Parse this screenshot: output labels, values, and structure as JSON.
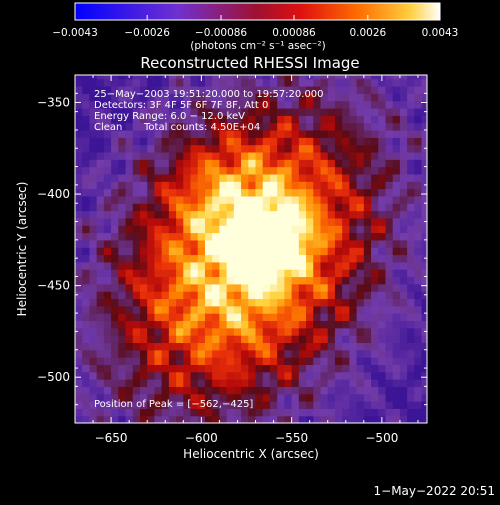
{
  "chart_data": {
    "type": "heatmap",
    "title": "Reconstructed RHESSI Image",
    "xlabel": "Heliocentric X (arcsec)",
    "ylabel": "Heliocentric Y (arcsec)",
    "xlim": [
      -670,
      -475
    ],
    "ylim": [
      -525,
      -335
    ],
    "x_ticks": [
      -650,
      -600,
      -550,
      -500
    ],
    "y_ticks": [
      -350,
      -400,
      -450,
      -500
    ],
    "x_tick_labels": [
      "−650",
      "−600",
      "−550",
      "−500"
    ],
    "y_tick_labels": [
      "−350",
      "−400",
      "−450",
      "−500"
    ],
    "colorbar": {
      "range": [
        -0.0043,
        0.0043
      ],
      "ticks": [
        -0.0043,
        -0.0026,
        -0.00086,
        0.00086,
        0.0026,
        0.0043
      ],
      "tick_labels": [
        "−0.0043",
        "−0.0026",
        "−0.00086",
        "0.00086",
        "0.0026",
        "0.0043"
      ],
      "unit_label": "(photons cm⁻² s⁻¹ asec⁻²)"
    },
    "annotations": [
      "25−May−2003 19:51:20.000 to 19:57:20.000",
      "Detectors: 3F 4F 5F 6F 7F 8F, Att 0",
      "Energy Range: 6.0 − 12.0 keV",
      "Clean",
      "Total counts: 4.50E+04"
    ],
    "peak": {
      "x": -562,
      "y": -425,
      "label": "Position of Peak = [−562,−425]"
    },
    "grid": false,
    "colors": {
      "background": "#000000",
      "text": "#ffffff",
      "low": "#0000ff",
      "mid": "#9040c0",
      "high": "#ffffff"
    }
  },
  "footer": {
    "timestamp": "1−May−2022 20:51"
  }
}
